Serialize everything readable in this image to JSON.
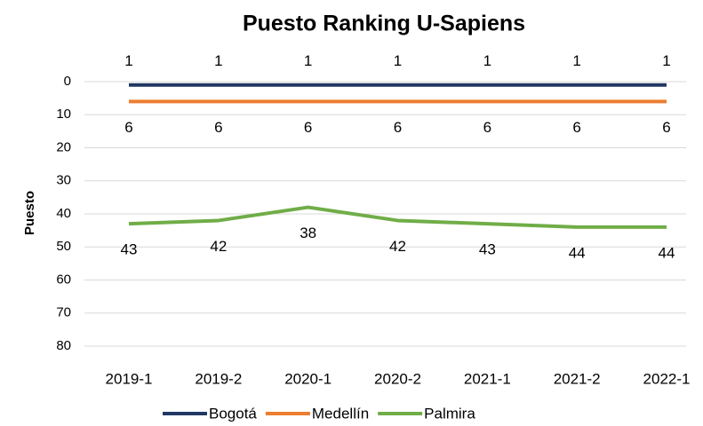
{
  "chart_data": {
    "type": "line",
    "title": "Puesto Ranking U-Sapiens",
    "y_label": "Puesto",
    "categories": [
      "2019-1",
      "2019-2",
      "2020-1",
      "2020-2",
      "2021-1",
      "2021-2",
      "2022-1"
    ],
    "series": [
      {
        "name": "Bogotá",
        "color": "#203864",
        "values": [
          1,
          1,
          1,
          1,
          1,
          1,
          1
        ]
      },
      {
        "name": "Medellín",
        "color": "#ed7d31",
        "values": [
          6,
          6,
          6,
          6,
          6,
          6,
          6
        ]
      },
      {
        "name": "Palmira",
        "color": "#70ad47",
        "values": [
          43,
          42,
          38,
          42,
          43,
          44,
          44
        ]
      }
    ],
    "ylim": [
      0,
      80
    ],
    "yticks": [
      0,
      10,
      20,
      30,
      40,
      50,
      60,
      70,
      80
    ],
    "y_inverted": true,
    "grid": true,
    "legend": "bottom"
  }
}
